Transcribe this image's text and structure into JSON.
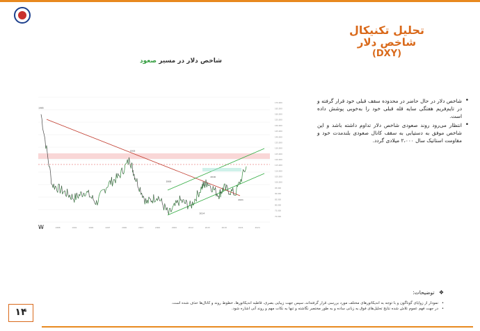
{
  "logo": {
    "caption": ""
  },
  "title": {
    "line1": "تحلیل تکنیکال",
    "line2": "شاخص دلار",
    "line3": "(DXY)"
  },
  "chart_heading": {
    "prefix": "شاخص دلار در مسیر",
    "highlight": "صعود"
  },
  "chart": {
    "watermark": "W"
  },
  "bullets": [
    "شاخص دلار در حال حاضر در محدوده سقف قبلی خود قرار گرفته و در تایم‌فریم هفتگی سایه قله قبلی خود را به‌خوبی پوشش داده است.",
    "انتظار می‌رود روند صعودی شاخص دلار تداوم داشته باشد و این شاخص موفق به دستیابی به سقف کانال صعودی بلندمدت خود و مقاومت استاتیک سال ۲،۰۰۰ میلادی گردد."
  ],
  "notes": {
    "heading": "توضیحات:",
    "items": [
      "نمودار از زوایای گوناگون و با توجه به اندیکاتورهای مختلف مورد بررسی قرار گرفته‌اند، سپس جهت زیبایی بصری، قاطبه اندیکاتورها، خطوط روند و کانال‌ها حذف شده است.",
      "در جهت فهم عموم تلاش شده نتایج تحلیل‌های فوق به زبانی ساده و به طور مختصر نگاشته و تنها به نکات مهم و روند آتی اشاره شود."
    ]
  },
  "page": {
    "number": "۱۴"
  },
  "colors": {
    "accent": "#e8891f",
    "title": "#d9691a",
    "highlight": "#2e9a3a"
  },
  "chart_data": {
    "type": "line",
    "title": "",
    "xlabel": "",
    "ylabel": "",
    "x": [
      1985,
      1987,
      1989,
      1991,
      1993,
      1995,
      1997,
      1999,
      2001,
      2002,
      2004,
      2006,
      2008,
      2010,
      2012,
      2014,
      2015,
      2017,
      2018,
      2020,
      2022
    ],
    "series": [
      {
        "values": [
          160,
          98,
          92,
          86,
          92,
          82,
          98,
          105,
          120,
          104,
          82,
          88,
          72,
          84,
          79,
          96,
          100,
          89,
          95,
          90,
          114
        ]
      }
    ],
    "ylim": [
      65,
      175
    ],
    "annotations": [
      "1985",
      "2002",
      "2008",
      "2014",
      "2016",
      "2021"
    ]
  }
}
